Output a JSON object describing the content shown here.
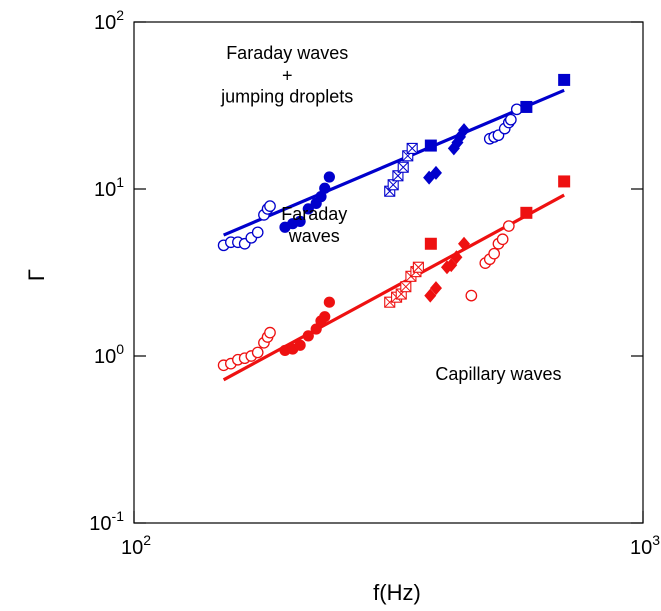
{
  "chart_data": {
    "type": "scatter",
    "title": "",
    "xlabel": "f(Hz)",
    "ylabel": "Γ",
    "xscale": "log",
    "yscale": "log",
    "xlim": [
      100,
      1000
    ],
    "ylim": [
      0.1,
      100
    ],
    "grid": false,
    "x_ticks": [
      {
        "value": 100,
        "base": "10",
        "exp": "2"
      },
      {
        "value": 1000,
        "base": "10",
        "exp": "3"
      }
    ],
    "y_ticks": [
      {
        "value": 0.1,
        "base": "10",
        "exp": "-1"
      },
      {
        "value": 1,
        "base": "10",
        "exp": "0"
      },
      {
        "value": 10,
        "base": "10",
        "exp": "1"
      },
      {
        "value": 100,
        "base": "10",
        "exp": "2"
      }
    ],
    "annotations": [
      {
        "text": "Faraday waves",
        "x": 200,
        "y": 60
      },
      {
        "text": "+",
        "x": 200,
        "y": 44
      },
      {
        "text": "jumping droplets",
        "x": 200,
        "y": 33
      },
      {
        "text": "Faraday",
        "x": 226,
        "y": 6.5
      },
      {
        "text": "waves",
        "x": 226,
        "y": 4.8
      },
      {
        "text": "Capillary waves",
        "x": 520,
        "y": 0.72
      }
    ],
    "series": [
      {
        "color": "#0000cc",
        "marker": "circle-open",
        "points": [
          [
            150,
            4.6
          ],
          [
            155,
            4.8
          ],
          [
            160,
            4.8
          ],
          [
            165,
            4.7
          ],
          [
            170,
            5.1
          ],
          [
            175,
            5.5
          ],
          [
            180,
            7.0
          ],
          [
            183,
            7.6
          ],
          [
            185,
            7.9
          ],
          [
            500,
            20
          ],
          [
            510,
            20.5
          ],
          [
            520,
            21
          ],
          [
            535,
            23
          ],
          [
            545,
            25
          ],
          [
            550,
            26
          ],
          [
            565,
            30
          ]
        ]
      },
      {
        "color": "#0000cc",
        "marker": "circle-filled",
        "points": [
          [
            198,
            5.9
          ],
          [
            205,
            6.2
          ],
          [
            212,
            6.4
          ],
          [
            220,
            7.6
          ],
          [
            228,
            8.2
          ],
          [
            233,
            9.0
          ],
          [
            237,
            10.1
          ],
          [
            242,
            11.8
          ]
        ]
      },
      {
        "color": "#0000cc",
        "marker": "square-x-open",
        "points": [
          [
            318,
            9.7
          ],
          [
            323,
            10.6
          ],
          [
            330,
            12.0
          ],
          [
            338,
            13.5
          ],
          [
            345,
            15.8
          ],
          [
            352,
            17.5
          ]
        ]
      },
      {
        "color": "#0000cc",
        "marker": "square-filled",
        "points": [
          [
            383,
            18.2
          ],
          [
            590,
            31
          ],
          [
            700,
            45
          ]
        ]
      },
      {
        "color": "#0000cc",
        "marker": "diamond-filled",
        "points": [
          [
            380,
            11.7
          ],
          [
            392,
            12.5
          ],
          [
            425,
            17.5
          ],
          [
            432,
            19.0
          ],
          [
            437,
            20.5
          ],
          [
            445,
            22.5
          ]
        ]
      },
      {
        "color": "#ee1111",
        "marker": "circle-open",
        "points": [
          [
            150,
            0.88
          ],
          [
            155,
            0.9
          ],
          [
            160,
            0.95
          ],
          [
            165,
            0.97
          ],
          [
            170,
            1.0
          ],
          [
            175,
            1.05
          ],
          [
            180,
            1.2
          ],
          [
            183,
            1.3
          ],
          [
            185,
            1.38
          ],
          [
            460,
            2.3
          ],
          [
            490,
            3.6
          ],
          [
            500,
            3.8
          ],
          [
            510,
            4.1
          ],
          [
            520,
            4.7
          ],
          [
            530,
            5.0
          ],
          [
            545,
            6.0
          ]
        ]
      },
      {
        "color": "#ee1111",
        "marker": "circle-filled",
        "points": [
          [
            198,
            1.08
          ],
          [
            205,
            1.1
          ],
          [
            212,
            1.16
          ],
          [
            220,
            1.32
          ],
          [
            228,
            1.45
          ],
          [
            233,
            1.62
          ],
          [
            237,
            1.72
          ],
          [
            242,
            2.1
          ]
        ]
      },
      {
        "color": "#ee1111",
        "marker": "square-x-open",
        "points": [
          [
            318,
            2.1
          ],
          [
            328,
            2.25
          ],
          [
            335,
            2.35
          ],
          [
            342,
            2.6
          ],
          [
            350,
            3.0
          ],
          [
            358,
            3.2
          ],
          [
            362,
            3.4
          ]
        ]
      },
      {
        "color": "#ee1111",
        "marker": "square-filled",
        "points": [
          [
            383,
            4.7
          ],
          [
            590,
            7.2
          ],
          [
            700,
            11.1
          ]
        ]
      },
      {
        "color": "#ee1111",
        "marker": "diamond-filled",
        "points": [
          [
            382,
            2.3
          ],
          [
            392,
            2.55
          ],
          [
            412,
            3.4
          ],
          [
            420,
            3.5
          ],
          [
            430,
            3.9
          ],
          [
            445,
            4.7
          ]
        ]
      }
    ],
    "fits": [
      {
        "color": "#0000cc",
        "from": [
          150,
          5.3
        ],
        "to": [
          700,
          39.0
        ]
      },
      {
        "color": "#ee1111",
        "from": [
          150,
          0.72
        ],
        "to": [
          700,
          9.2
        ]
      }
    ]
  }
}
